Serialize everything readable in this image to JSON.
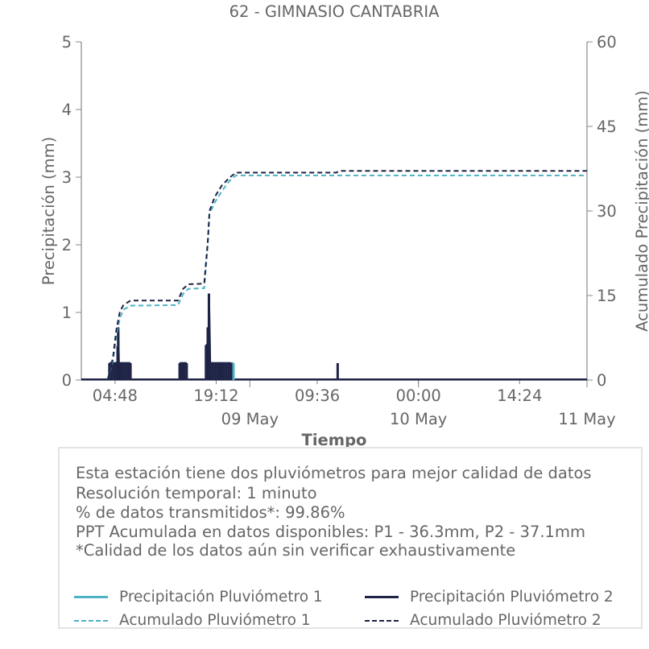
{
  "chart_data": {
    "type": "bar+line",
    "title": "62 - GIMNASIO CANTABRIA",
    "xlabel": "Tiempo",
    "ylabel_left": "Precipitación (mm)",
    "ylabel_right": "Acumulado Precipitación (mm)",
    "x_ticks_time": [
      "04:48",
      "19:12",
      "09:36",
      "00:00",
      "14:24"
    ],
    "x_ticks_date": [
      "09 May",
      "10 May",
      "11 May"
    ],
    "x_range": [
      "2024-05-08 00:00",
      "2024-05-11 00:00"
    ],
    "ylim_left": [
      0,
      5
    ],
    "yticks_left": [
      0,
      1,
      2,
      3,
      4,
      5
    ],
    "ylim_right": [
      0,
      60
    ],
    "yticks_right": [
      0,
      15,
      30,
      45,
      60
    ],
    "series": [
      {
        "name": "Precipitación Pluviómetro 1",
        "kind": "bar",
        "color": "#4db3c4",
        "points": [
          [
            "05-08 04:00",
            0.25
          ],
          [
            "05-08 04:20",
            0.25
          ],
          [
            "05-08 04:40",
            0.25
          ],
          [
            "05-08 05:00",
            0.25
          ],
          [
            "05-08 05:10",
            0.5
          ],
          [
            "05-08 05:15",
            0.75
          ],
          [
            "05-08 05:20",
            0.25
          ],
          [
            "05-08 05:40",
            0.25
          ],
          [
            "05-08 06:00",
            0.25
          ],
          [
            "05-08 06:20",
            0.25
          ],
          [
            "05-08 06:40",
            0.25
          ],
          [
            "05-08 07:00",
            0.25
          ],
          [
            "05-08 14:00",
            0.25
          ],
          [
            "05-08 14:20",
            0.25
          ],
          [
            "05-08 14:40",
            0.25
          ],
          [
            "05-08 15:00",
            0.25
          ],
          [
            "05-08 17:45",
            0.5
          ],
          [
            "05-08 18:00",
            0.75
          ],
          [
            "05-08 18:10",
            1.25
          ],
          [
            "05-08 18:20",
            0.25
          ],
          [
            "05-08 18:40",
            0.25
          ],
          [
            "05-08 19:00",
            0.25
          ],
          [
            "05-08 19:20",
            0.25
          ],
          [
            "05-08 19:40",
            0.25
          ],
          [
            "05-08 20:00",
            0.25
          ],
          [
            "05-08 20:20",
            0.25
          ],
          [
            "05-08 20:40",
            0.25
          ],
          [
            "05-08 21:00",
            0.25
          ],
          [
            "05-08 21:20",
            0.25
          ],
          [
            "05-08 21:40",
            0.25
          ]
        ]
      },
      {
        "name": "Precipitación Pluviómetro 2",
        "kind": "bar",
        "color": "#1f2345",
        "points": [
          [
            "05-08 04:00",
            0.25
          ],
          [
            "05-08 04:20",
            0.25
          ],
          [
            "05-08 04:40",
            0.25
          ],
          [
            "05-08 05:00",
            0.25
          ],
          [
            "05-08 05:10",
            0.5
          ],
          [
            "05-08 05:15",
            0.78
          ],
          [
            "05-08 05:20",
            0.25
          ],
          [
            "05-08 05:40",
            0.25
          ],
          [
            "05-08 06:00",
            0.25
          ],
          [
            "05-08 06:20",
            0.25
          ],
          [
            "05-08 06:40",
            0.25
          ],
          [
            "05-08 07:00",
            0.25
          ],
          [
            "05-08 14:00",
            0.25
          ],
          [
            "05-08 14:20",
            0.25
          ],
          [
            "05-08 14:40",
            0.25
          ],
          [
            "05-08 15:00",
            0.25
          ],
          [
            "05-08 17:45",
            0.52
          ],
          [
            "05-08 18:00",
            0.78
          ],
          [
            "05-08 18:10",
            1.28
          ],
          [
            "05-08 18:20",
            0.25
          ],
          [
            "05-08 18:40",
            0.25
          ],
          [
            "05-08 19:00",
            0.25
          ],
          [
            "05-08 19:20",
            0.25
          ],
          [
            "05-08 19:40",
            0.25
          ],
          [
            "05-08 20:00",
            0.25
          ],
          [
            "05-08 20:20",
            0.25
          ],
          [
            "05-08 20:40",
            0.25
          ],
          [
            "05-08 21:00",
            0.25
          ],
          [
            "05-08 21:20",
            0.25
          ],
          [
            "05-09 12:30",
            0.25
          ]
        ]
      },
      {
        "name": "Acumulado Pluviómetro 1",
        "kind": "line",
        "axis": "right",
        "dash": true,
        "color": "#4db3c4",
        "points": [
          [
            "05-08 03:45",
            0
          ],
          [
            "05-08 04:30",
            3.5
          ],
          [
            "05-08 05:00",
            8
          ],
          [
            "05-08 05:30",
            11
          ],
          [
            "05-08 06:00",
            12.5
          ],
          [
            "05-08 07:00",
            13.2
          ],
          [
            "05-08 13:45",
            13.3
          ],
          [
            "05-08 14:30",
            15.3
          ],
          [
            "05-08 15:15",
            16.2
          ],
          [
            "05-08 17:30",
            16.3
          ],
          [
            "05-08 18:00",
            24
          ],
          [
            "05-08 18:15",
            29.5
          ],
          [
            "05-08 19:00",
            31.5
          ],
          [
            "05-08 20:00",
            33.5
          ],
          [
            "05-08 21:00",
            35.2
          ],
          [
            "05-08 22:00",
            36.3
          ],
          [
            "05-11 00:00",
            36.3
          ]
        ]
      },
      {
        "name": "Acumulado Pluviómetro 2",
        "kind": "line",
        "axis": "right",
        "dash": true,
        "color": "#1f2345",
        "points": [
          [
            "05-08 03:45",
            0
          ],
          [
            "05-08 04:30",
            4
          ],
          [
            "05-08 05:00",
            9
          ],
          [
            "05-08 05:30",
            12.2
          ],
          [
            "05-08 06:00",
            13.3
          ],
          [
            "05-08 07:00",
            14.1
          ],
          [
            "05-08 13:45",
            14.1
          ],
          [
            "05-08 14:30",
            16.2
          ],
          [
            "05-08 15:15",
            17
          ],
          [
            "05-08 17:30",
            17.1
          ],
          [
            "05-08 18:00",
            24.5
          ],
          [
            "05-08 18:15",
            30
          ],
          [
            "05-08 19:00",
            32.5
          ],
          [
            "05-08 20:00",
            34.5
          ],
          [
            "05-08 21:00",
            35.8
          ],
          [
            "05-08 22:00",
            36.8
          ],
          [
            "05-09 12:20",
            36.8
          ],
          [
            "05-09 12:40",
            37.1
          ],
          [
            "05-11 00:00",
            37.1
          ]
        ]
      }
    ],
    "grid": false,
    "legend_placement": "bottom"
  },
  "info": {
    "line1": "Esta estación tiene dos pluviómetros para mejor calidad de datos",
    "line2": "Resolución temporal: 1 minuto",
    "line3": "% de datos transmitidos*: 99.86%",
    "line4": "PPT Acumulada en datos disponibles: P1 - 36.3mm, P2 - 37.1mm",
    "line5": "*Calidad de los datos aún sin verificar exhaustivamente"
  },
  "legend": {
    "p1": "Precipitación Pluviómetro 1",
    "p2": "Precipitación Pluviómetro 2",
    "a1": "Acumulado Pluviómetro 1",
    "a2": "Acumulado Pluviómetro 2"
  },
  "colors": {
    "teal": "#4db3c4",
    "navy": "#1f2345",
    "text": "#666666"
  }
}
